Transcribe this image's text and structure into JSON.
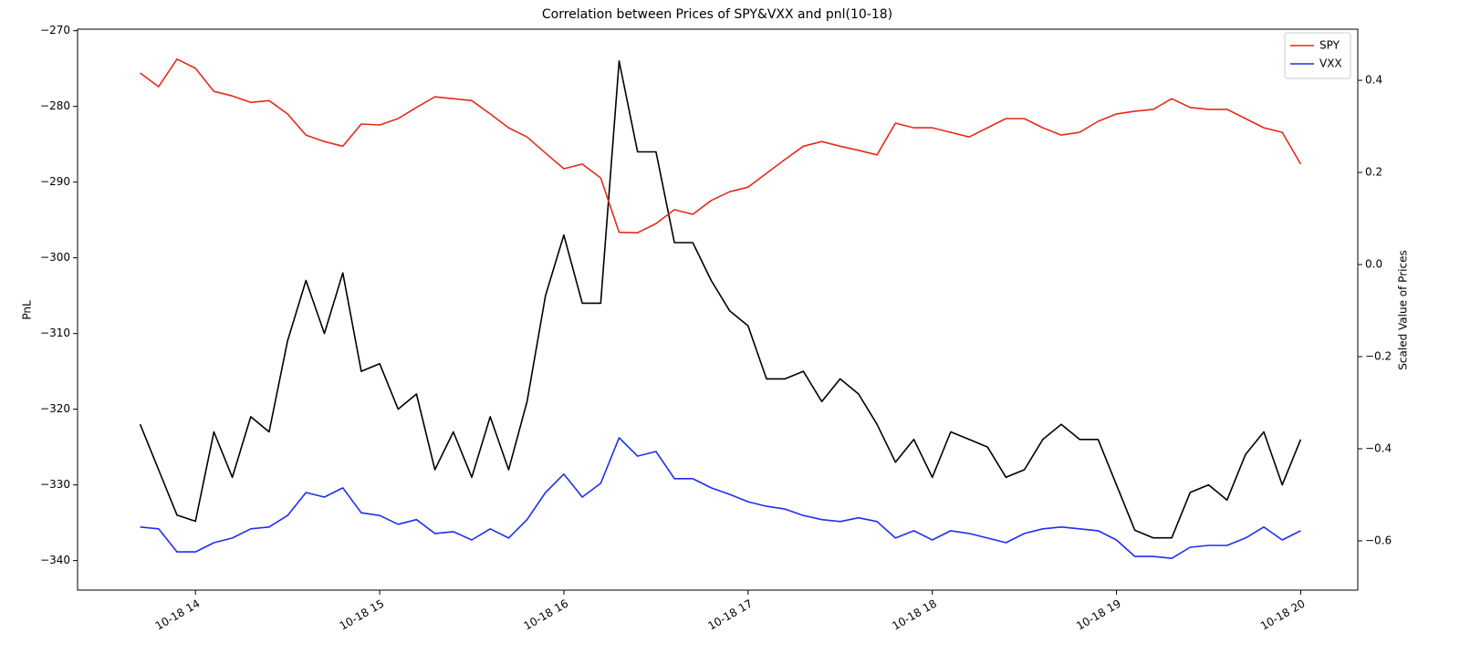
{
  "chart_data": {
    "type": "line",
    "title": "Correlation between Prices of SPY&VXX and pnl(10-18)",
    "ylabel": "PnL",
    "y2label": "Scaled Value of Prices",
    "x": [
      13.7,
      13.8,
      13.9,
      14.0,
      14.1,
      14.2,
      14.3,
      14.4,
      14.5,
      14.6,
      14.7,
      14.8,
      14.9,
      15.0,
      15.1,
      15.2,
      15.3,
      15.4,
      15.5,
      15.6,
      15.7,
      15.8,
      15.9,
      16.0,
      16.1,
      16.2,
      16.3,
      16.4,
      16.5,
      16.6,
      16.7,
      16.8,
      16.9,
      17.0,
      17.1,
      17.2,
      17.3,
      17.4,
      17.5,
      17.6,
      17.7,
      17.8,
      17.9,
      18.0,
      18.1,
      18.2,
      18.3,
      18.4,
      18.5,
      18.6,
      18.7,
      18.8,
      18.9,
      19.0,
      19.1,
      19.2,
      19.3,
      19.4,
      19.5,
      19.6,
      19.7,
      19.8,
      19.9,
      20.0
    ],
    "series": [
      {
        "color": "#000000",
        "values": [
          -322,
          -328,
          -334,
          -334.8,
          -323,
          -329,
          -321,
          -323,
          -311,
          -303,
          -310,
          -302,
          -315,
          -314,
          -320,
          -318,
          -328,
          -323,
          -329,
          -321,
          -328,
          -319,
          -305,
          -297,
          -306,
          -306,
          -274,
          -286,
          -286,
          -298,
          -298,
          -303,
          -307,
          -309,
          -316,
          -316,
          -315,
          -319,
          -316,
          -318,
          -322,
          -327,
          -324,
          -329,
          -323,
          -324,
          -325,
          -329,
          -328,
          -324,
          -322,
          -324,
          -324,
          -330,
          -336,
          -337,
          -337,
          -331,
          -330,
          -332,
          -326,
          -323,
          -330,
          -324
        ]
      },
      {
        "name": "SPY",
        "color": "#e8291c",
        "axis": "y2",
        "values": [
          0.416,
          0.386,
          0.446,
          0.426,
          0.376,
          0.366,
          0.352,
          0.356,
          0.327,
          0.281,
          0.267,
          0.257,
          0.305,
          0.303,
          0.317,
          0.341,
          0.364,
          0.36,
          0.356,
          0.327,
          0.297,
          0.277,
          0.242,
          0.208,
          0.218,
          0.188,
          0.07,
          0.069,
          0.089,
          0.119,
          0.109,
          0.139,
          0.158,
          0.168,
          0.198,
          0.228,
          0.257,
          0.267,
          0.257,
          0.248,
          0.238,
          0.307,
          0.297,
          0.297,
          0.287,
          0.277,
          0.297,
          0.317,
          0.317,
          0.297,
          0.281,
          0.287,
          0.311,
          0.327,
          0.333,
          0.337,
          0.36,
          0.341,
          0.337,
          0.337,
          0.317,
          0.297,
          0.287,
          0.218
        ]
      },
      {
        "name": "VXX",
        "color": "#1f2ef0",
        "axis": "y2",
        "values": [
          -0.57,
          -0.574,
          -0.624,
          -0.624,
          -0.604,
          -0.594,
          -0.574,
          -0.57,
          -0.545,
          -0.495,
          -0.505,
          -0.485,
          -0.539,
          -0.545,
          -0.564,
          -0.554,
          -0.584,
          -0.58,
          -0.598,
          -0.574,
          -0.594,
          -0.554,
          -0.495,
          -0.455,
          -0.505,
          -0.475,
          -0.376,
          -0.416,
          -0.406,
          -0.465,
          -0.465,
          -0.485,
          -0.499,
          -0.515,
          -0.525,
          -0.531,
          -0.545,
          -0.554,
          -0.558,
          -0.55,
          -0.558,
          -0.594,
          -0.578,
          -0.598,
          -0.578,
          -0.584,
          -0.594,
          -0.604,
          -0.584,
          -0.574,
          -0.57,
          -0.574,
          -0.578,
          -0.598,
          -0.634,
          -0.634,
          -0.638,
          -0.614,
          -0.61,
          -0.61,
          -0.594,
          -0.57,
          -0.598,
          -0.578
        ]
      }
    ],
    "xlim": [
      13.36,
      20.31
    ],
    "xticks": [
      {
        "value": 14,
        "label": "10-18 14"
      },
      {
        "value": 15,
        "label": "10-18 15"
      },
      {
        "value": 16,
        "label": "10-18 16"
      },
      {
        "value": 17,
        "label": "10-18 17"
      },
      {
        "value": 18,
        "label": "10-18 18"
      },
      {
        "value": 19,
        "label": "10-18 19"
      },
      {
        "value": 20,
        "label": "10-18 20"
      }
    ],
    "ylim": [
      -343.9,
      -269.8
    ],
    "yticks": [
      {
        "value": -340,
        "label": "−340"
      },
      {
        "value": -330,
        "label": "−330"
      },
      {
        "value": -320,
        "label": "−320"
      },
      {
        "value": -310,
        "label": "−310"
      },
      {
        "value": -300,
        "label": "−300"
      },
      {
        "value": -290,
        "label": "−290"
      },
      {
        "value": -280,
        "label": "−280"
      },
      {
        "value": -270,
        "label": "−270"
      }
    ],
    "y2lim": [
      -0.707,
      0.511
    ],
    "y2ticks": [
      {
        "value": -0.6,
        "label": "−0.6"
      },
      {
        "value": -0.4,
        "label": "−0.4"
      },
      {
        "value": -0.2,
        "label": "−0.2"
      },
      {
        "value": 0,
        "label": "0.0"
      },
      {
        "value": 0.2,
        "label": "0.2"
      },
      {
        "value": 0.4,
        "label": "0.4"
      }
    ],
    "grid": false,
    "legend": "upper right"
  }
}
